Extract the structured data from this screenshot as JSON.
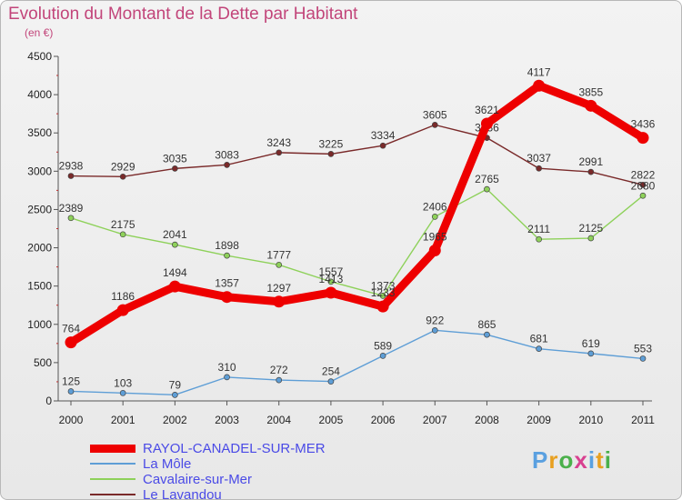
{
  "chart_data": {
    "type": "line",
    "title": "Evolution du Montant de la Dette par Habitant",
    "subtitle": "(en €)",
    "x": [
      "2000",
      "2001",
      "2002",
      "2003",
      "2004",
      "2005",
      "2006",
      "2007",
      "2008",
      "2009",
      "2010",
      "2011"
    ],
    "ylim": [
      0,
      4500
    ],
    "yticks": [
      "0",
      "500",
      "1000",
      "1500",
      "2000",
      "2500",
      "3000",
      "3500",
      "4000",
      "4500"
    ],
    "grid": false,
    "legend_position": "bottom-left",
    "series": [
      {
        "name": "RAYOL-CANADEL-SUR-MER",
        "color": "#ee0000",
        "values": [
          764,
          1186,
          1494,
          1357,
          1297,
          1413,
          1233,
          1965,
          3621,
          4117,
          3855,
          3436
        ],
        "labels": [
          "764",
          "1186",
          "1494",
          "1357",
          "1297",
          "1413",
          "1233",
          "1965",
          "3621",
          "4117",
          "3855",
          "3436"
        ]
      },
      {
        "name": "La Môle",
        "color": "#5e9ed6",
        "values": [
          125,
          103,
          79,
          310,
          272,
          254,
          589,
          922,
          865,
          681,
          619,
          553
        ],
        "labels": [
          "125",
          "103",
          "79",
          "310",
          "272",
          "254",
          "589",
          "922",
          "865",
          "681",
          "619",
          "553"
        ]
      },
      {
        "name": "Cavalaire-sur-Mer",
        "color": "#8ed15a",
        "values": [
          2389,
          2175,
          2041,
          1898,
          1777,
          1557,
          1373,
          2406,
          2765,
          2111,
          2125,
          2680
        ],
        "labels": [
          "2389",
          "2175",
          "2041",
          "1898",
          "1777",
          "1557",
          "1373",
          "2406",
          "2765",
          "2111",
          "2125",
          "2680"
        ]
      },
      {
        "name": "Le Lavandou",
        "color": "#7a2a2a",
        "values": [
          2938,
          2929,
          3035,
          3083,
          3243,
          3225,
          3334,
          3605,
          3436,
          3037,
          2991,
          2822
        ],
        "labels": [
          "2938",
          "2929",
          "3035",
          "3083",
          "3243",
          "3225",
          "3334",
          "3605",
          "3436",
          "3037",
          "2991",
          "2822"
        ]
      }
    ]
  },
  "logo": {
    "letters": [
      "P",
      "r",
      "o",
      "x",
      "i",
      "t",
      "i"
    ],
    "colors": [
      "#5aa0e0",
      "#e8a020",
      "#4bb04b",
      "#d84090",
      "#5aa0e0",
      "#e8a020",
      "#4bb04b"
    ]
  }
}
